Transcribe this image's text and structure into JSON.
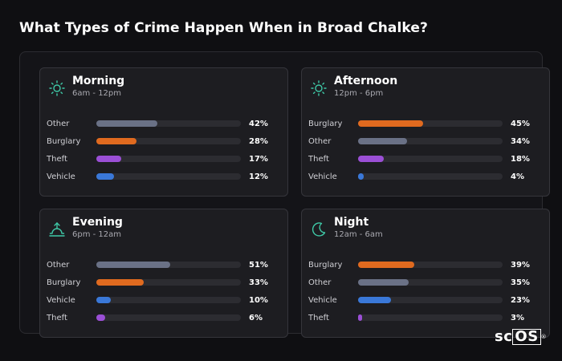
{
  "title": "What Types of Crime Happen When in Broad Chalke?",
  "brand": {
    "prefix": "sc",
    "boxed": "OS",
    "mark": "®"
  },
  "colors": {
    "Other": "#6a7186",
    "Burglary": "#e06a1f",
    "Theft": "#9b4fd6",
    "Vehicle": "#3a78d8",
    "icon": "#3fc9a7"
  },
  "chart_data": [
    {
      "type": "bar",
      "title": "Morning",
      "subtitle": "6am - 12pm",
      "icon": "sun-icon",
      "categories": [
        "Other",
        "Burglary",
        "Theft",
        "Vehicle"
      ],
      "values": [
        42,
        28,
        17,
        12
      ],
      "value_labels": [
        "42%",
        "28%",
        "17%",
        "12%"
      ],
      "xlim": [
        0,
        100
      ]
    },
    {
      "type": "bar",
      "title": "Afternoon",
      "subtitle": "12pm - 6pm",
      "icon": "sun-icon",
      "categories": [
        "Burglary",
        "Other",
        "Theft",
        "Vehicle"
      ],
      "values": [
        45,
        34,
        18,
        4
      ],
      "value_labels": [
        "45%",
        "34%",
        "18%",
        "4%"
      ],
      "xlim": [
        0,
        100
      ]
    },
    {
      "type": "bar",
      "title": "Evening",
      "subtitle": "6pm - 12am",
      "icon": "sunset-icon",
      "categories": [
        "Other",
        "Burglary",
        "Vehicle",
        "Theft"
      ],
      "values": [
        51,
        33,
        10,
        6
      ],
      "value_labels": [
        "51%",
        "33%",
        "10%",
        "6%"
      ],
      "xlim": [
        0,
        100
      ]
    },
    {
      "type": "bar",
      "title": "Night",
      "subtitle": "12am - 6am",
      "icon": "moon-icon",
      "categories": [
        "Burglary",
        "Other",
        "Vehicle",
        "Theft"
      ],
      "values": [
        39,
        35,
        23,
        3
      ],
      "value_labels": [
        "39%",
        "35%",
        "23%",
        "3%"
      ],
      "xlim": [
        0,
        100
      ]
    }
  ]
}
